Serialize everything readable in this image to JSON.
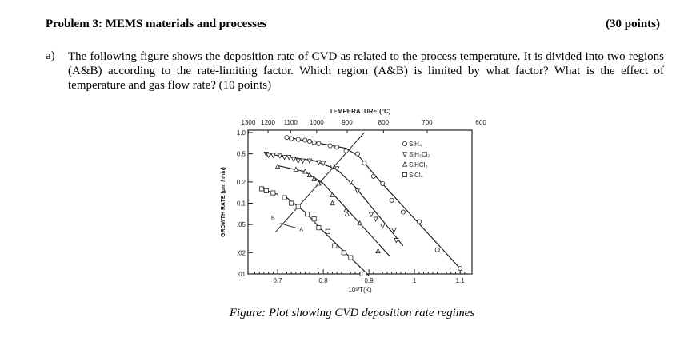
{
  "problem": {
    "title": "Problem 3: MEMS materials and processes",
    "points": "(30 points)"
  },
  "question": {
    "label": "a)",
    "text": "The following figure shows the deposition rate of CVD as related to the process temperature. It is divided into two regions (A&B) according to the rate-limiting factor. Which region (A&B) is limited by what factor? What is the effect of temperature and gas flow rate? (10 points)"
  },
  "chart_data": {
    "type": "scatter",
    "top_axis_label": "TEMPERATURE (°C)",
    "top_ticks": [
      1300,
      1200,
      1100,
      1000,
      900,
      800,
      700,
      600
    ],
    "xlabel": "10³/T(K)",
    "ylabel": "GROWTH RATE (μm / min)",
    "x_ticks": [
      0.7,
      0.8,
      0.9,
      1.0,
      1.1
    ],
    "y_ticks": [
      1.0,
      0.5,
      0.2,
      0.1,
      0.05,
      0.02,
      0.01
    ],
    "y_tick_labels": [
      "1.0",
      "0.5",
      "0.2",
      "0.1",
      ".05",
      ".02",
      ".01"
    ],
    "xlim": [
      0.635,
      1.126
    ],
    "ylim": [
      0.01,
      1.0
    ],
    "y_scale": "log",
    "legend_placement": "top-right",
    "series": [
      {
        "name": "SiH₄",
        "marker": "circle",
        "points": [
          [
            0.72,
            0.85
          ],
          [
            0.73,
            0.82
          ],
          [
            0.745,
            0.8
          ],
          [
            0.76,
            0.78
          ],
          [
            0.77,
            0.75
          ],
          [
            0.78,
            0.72
          ],
          [
            0.79,
            0.7
          ],
          [
            0.815,
            0.65
          ],
          [
            0.83,
            0.62
          ],
          [
            0.85,
            0.55
          ],
          [
            0.875,
            0.5
          ],
          [
            0.89,
            0.37
          ],
          [
            0.91,
            0.24
          ],
          [
            0.93,
            0.19
          ],
          [
            0.95,
            0.11
          ],
          [
            0.975,
            0.075
          ],
          [
            1.01,
            0.055
          ],
          [
            1.05,
            0.022
          ],
          [
            1.1,
            0.012
          ]
        ],
        "fit": [
          [
            0.72,
            0.86
          ],
          [
            0.85,
            0.6
          ],
          [
            0.88,
            0.45
          ],
          [
            0.92,
            0.22
          ],
          [
            1.105,
            0.011
          ]
        ]
      },
      {
        "name": "SiH₂Cl₂",
        "marker": "triangle-down",
        "points": [
          [
            0.675,
            0.5
          ],
          [
            0.68,
            0.48
          ],
          [
            0.69,
            0.48
          ],
          [
            0.705,
            0.47
          ],
          [
            0.715,
            0.45
          ],
          [
            0.725,
            0.45
          ],
          [
            0.735,
            0.42
          ],
          [
            0.745,
            0.4
          ],
          [
            0.755,
            0.4
          ],
          [
            0.77,
            0.4
          ],
          [
            0.79,
            0.38
          ],
          [
            0.8,
            0.37
          ],
          [
            0.82,
            0.33
          ],
          [
            0.83,
            0.31
          ],
          [
            0.86,
            0.2
          ],
          [
            0.875,
            0.15
          ],
          [
            0.905,
            0.07
          ],
          [
            0.915,
            0.06
          ],
          [
            0.93,
            0.048
          ],
          [
            0.955,
            0.042
          ],
          [
            0.96,
            0.03
          ]
        ],
        "fit": [
          [
            0.675,
            0.5
          ],
          [
            0.78,
            0.4
          ],
          [
            0.83,
            0.3
          ],
          [
            0.87,
            0.17
          ],
          [
            0.975,
            0.025
          ]
        ]
      },
      {
        "name": "SiHCl₃",
        "marker": "triangle-up",
        "points": [
          [
            0.7,
            0.33
          ],
          [
            0.74,
            0.3
          ],
          [
            0.76,
            0.28
          ],
          [
            0.77,
            0.25
          ],
          [
            0.78,
            0.22
          ],
          [
            0.79,
            0.19
          ],
          [
            0.82,
            0.13
          ],
          [
            0.82,
            0.1
          ],
          [
            0.85,
            0.08
          ],
          [
            0.852,
            0.07
          ],
          [
            0.88,
            0.052
          ],
          [
            0.92,
            0.021
          ]
        ],
        "fit": [
          [
            0.7,
            0.34
          ],
          [
            0.76,
            0.28
          ],
          [
            0.8,
            0.19
          ],
          [
            0.84,
            0.1
          ],
          [
            0.945,
            0.018
          ]
        ]
      },
      {
        "name": "SiCl₄",
        "marker": "square",
        "points": [
          [
            0.665,
            0.16
          ],
          [
            0.675,
            0.15
          ],
          [
            0.69,
            0.14
          ],
          [
            0.705,
            0.135
          ],
          [
            0.715,
            0.12
          ],
          [
            0.73,
            0.1
          ],
          [
            0.745,
            0.09
          ],
          [
            0.765,
            0.07
          ],
          [
            0.78,
            0.06
          ],
          [
            0.79,
            0.045
          ],
          [
            0.81,
            0.04
          ],
          [
            0.825,
            0.025
          ],
          [
            0.845,
            0.02
          ],
          [
            0.86,
            0.017
          ],
          [
            0.885,
            0.01
          ],
          [
            0.89,
            0.01
          ]
        ],
        "fit": [
          [
            0.665,
            0.16
          ],
          [
            0.72,
            0.12
          ],
          [
            0.76,
            0.075
          ],
          [
            0.8,
            0.04
          ],
          [
            0.9,
            0.0095
          ]
        ]
      }
    ],
    "regime_boundary": [
      [
        0.695,
        0.039
      ],
      [
        0.89,
        1.0
      ]
    ],
    "annotations": [
      {
        "text": "B",
        "x": 0.69,
        "y": 0.058
      },
      {
        "text": "A",
        "x": 0.752,
        "y": 0.04
      }
    ]
  },
  "caption": "Figure: Plot showing CVD deposition rate regimes"
}
